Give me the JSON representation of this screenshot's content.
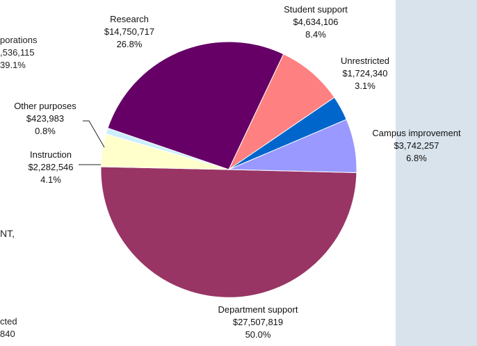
{
  "chart_data": {
    "type": "pie",
    "slices": [
      {
        "name": "Department support",
        "amount": "$27,507,819",
        "percent": "50.0%",
        "value": 27507819,
        "color": "#983564"
      },
      {
        "name": "Instruction",
        "amount": "$2,282,546",
        "percent": "4.1%",
        "value": 2282546,
        "color": "#ffffcc"
      },
      {
        "name": "Other purposes",
        "amount": "$423,983",
        "percent": "0.8%",
        "value": 423983,
        "color": "#cceeff"
      },
      {
        "name": "Research",
        "amount": "$14,750,717",
        "percent": "26.8%",
        "value": 14750717,
        "color": "#660066"
      },
      {
        "name": "Student support",
        "amount": "$4,634,106",
        "percent": "8.4%",
        "value": 4634106,
        "color": "#ff8080"
      },
      {
        "name": "Unrestricted",
        "amount": "$1,724,340",
        "percent": "3.1%",
        "value": 1724340,
        "color": "#0066cc"
      },
      {
        "name": "Campus improvement",
        "amount": "$3,742,257",
        "percent": "6.8%",
        "value": 3742257,
        "color": "#9999ff"
      }
    ]
  },
  "cut_off_left": {
    "corp_line1": "porations",
    "corp_line2": ",536,115",
    "corp_line3": "39.1%",
    "mid_text": "NT,",
    "bottom_line1": "cted",
    "bottom_line2": "840"
  }
}
